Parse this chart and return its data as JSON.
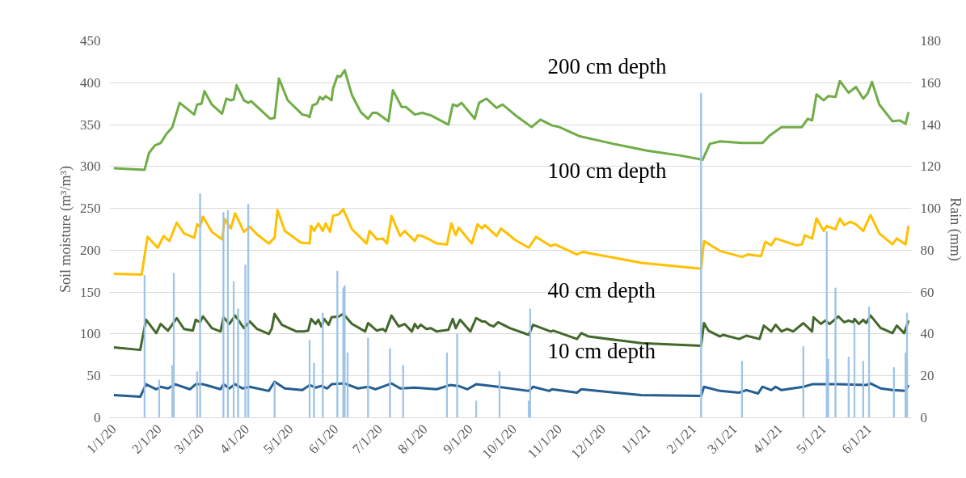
{
  "chart_data": {
    "type": "line",
    "ylabel": "Soil moisture (m³/m³)",
    "y2label": "Rain (mm)",
    "xlim": [
      "2019-12-29",
      "2021-06-30"
    ],
    "xticks": [
      {
        "value": "2020-01-01",
        "label": "1/1/20"
      },
      {
        "value": "2020-02-01",
        "label": "2/1/20"
      },
      {
        "value": "2020-03-01",
        "label": "3/1/20"
      },
      {
        "value": "2020-04-01",
        "label": "4/1/20"
      },
      {
        "value": "2020-05-01",
        "label": "5/1/20"
      },
      {
        "value": "2020-06-01",
        "label": "6/1/20"
      },
      {
        "value": "2020-07-01",
        "label": "7/1/20"
      },
      {
        "value": "2020-08-01",
        "label": "8/1/20"
      },
      {
        "value": "2020-09-01",
        "label": "9/1/20"
      },
      {
        "value": "2020-10-01",
        "label": "10/1/20"
      },
      {
        "value": "2020-11-01",
        "label": "11/1/20"
      },
      {
        "value": "2020-12-01",
        "label": "12/1/20"
      },
      {
        "value": "2021-01-01",
        "label": "1/1/21"
      },
      {
        "value": "2021-02-01",
        "label": "2/1/21"
      },
      {
        "value": "2021-03-01",
        "label": "3/1/21"
      },
      {
        "value": "2021-04-01",
        "label": "4/1/21"
      },
      {
        "value": "2021-05-01",
        "label": "5/1/21"
      },
      {
        "value": "2021-06-01",
        "label": "6/1/21"
      }
    ],
    "ylim": [
      0,
      450
    ],
    "yticks": [
      0,
      50,
      100,
      150,
      200,
      250,
      300,
      350,
      400,
      450
    ],
    "y2lim": [
      0,
      180
    ],
    "y2ticks": [
      0,
      20,
      40,
      60,
      80,
      100,
      120,
      140,
      160,
      180
    ],
    "grid": "y",
    "marker": "none",
    "line_style": "solid",
    "annotations": [
      "200 cm depth",
      "100 cm depth",
      "40 cm depth",
      "10 cm depth"
    ],
    "series": [
      {
        "color": "#70ad47",
        "x": [
          "2020-01-01",
          "2020-01-22",
          "2020-01-25",
          "2020-01-29",
          "2020-02-02",
          "2020-02-06",
          "2020-02-10",
          "2020-02-15",
          "2020-02-25",
          "2020-02-27",
          "2020-03-01",
          "2020-03-03",
          "2020-03-08",
          "2020-03-15",
          "2020-03-18",
          "2020-03-21",
          "2020-03-23",
          "2020-03-25",
          "2020-03-30",
          "2020-04-02",
          "2020-04-04",
          "2020-04-17",
          "2020-04-20",
          "2020-04-23",
          "2020-04-29",
          "2020-05-09",
          "2020-05-12",
          "2020-05-14",
          "2020-05-16",
          "2020-05-19",
          "2020-05-21",
          "2020-05-23",
          "2020-05-25",
          "2020-05-29",
          "2020-05-30",
          "2020-06-02",
          "2020-06-04",
          "2020-06-07",
          "2020-06-12",
          "2020-06-18",
          "2020-06-23",
          "2020-06-26",
          "2020-06-29",
          "2020-07-07",
          "2020-07-10",
          "2020-07-16",
          "2020-07-19",
          "2020-07-25",
          "2020-07-30",
          "2020-08-05",
          "2020-08-17",
          "2020-08-20",
          "2020-08-23",
          "2020-08-26",
          "2020-09-04",
          "2020-09-07",
          "2020-09-12",
          "2020-09-19",
          "2020-09-23",
          "2020-10-02",
          "2020-10-13",
          "2020-10-19",
          "2020-10-27",
          "2020-11-01",
          "2020-11-15",
          "2020-12-08",
          "2020-12-31",
          "2021-01-23",
          "2021-02-07",
          "2021-02-12",
          "2021-02-19",
          "2021-03-06",
          "2021-03-20",
          "2021-03-25",
          "2021-04-02",
          "2021-04-16",
          "2021-04-20",
          "2021-04-23",
          "2021-04-26",
          "2021-05-01",
          "2021-05-04",
          "2021-05-09",
          "2021-05-12",
          "2021-05-18",
          "2021-05-23",
          "2021-05-28",
          "2021-05-31",
          "2021-06-03",
          "2021-06-08",
          "2021-06-17",
          "2021-06-22",
          "2021-06-26",
          "2021-06-28"
        ],
        "values": [
          298,
          296,
          316,
          325,
          328,
          339,
          347,
          376,
          362,
          374,
          375,
          390,
          374,
          363,
          381,
          379,
          380,
          397,
          379,
          376,
          378,
          357,
          358,
          405,
          379,
          362,
          361,
          359,
          373,
          375,
          383,
          380,
          384,
          379,
          393,
          408,
          407,
          415,
          385,
          365,
          357,
          364,
          364,
          354,
          391,
          371,
          371,
          362,
          364,
          361,
          350,
          374,
          372,
          376,
          357,
          376,
          381,
          370,
          374,
          361,
          347,
          356,
          349,
          347,
          336,
          327,
          319,
          313,
          308,
          327,
          330,
          328,
          328,
          337,
          347,
          347,
          357,
          355,
          386,
          379,
          384,
          383,
          402,
          388,
          395,
          381,
          387,
          401,
          374,
          354,
          355,
          351,
          365
        ]
      },
      {
        "color": "#ffc000",
        "x": [
          "2020-01-01",
          "2020-01-20",
          "2020-01-24",
          "2020-01-31",
          "2020-02-04",
          "2020-02-08",
          "2020-02-13",
          "2020-02-18",
          "2020-02-25",
          "2020-02-27",
          "2020-02-29",
          "2020-03-02",
          "2020-03-08",
          "2020-03-15",
          "2020-03-17",
          "2020-03-21",
          "2020-03-24",
          "2020-03-30",
          "2020-04-03",
          "2020-04-08",
          "2020-04-16",
          "2020-04-20",
          "2020-04-22",
          "2020-04-27",
          "2020-05-08",
          "2020-05-14",
          "2020-05-15",
          "2020-05-17",
          "2020-05-20",
          "2020-05-23",
          "2020-05-25",
          "2020-05-28",
          "2020-05-30",
          "2020-06-03",
          "2020-06-06",
          "2020-06-12",
          "2020-06-22",
          "2020-06-24",
          "2020-06-29",
          "2020-07-03",
          "2020-07-06",
          "2020-07-09",
          "2020-07-15",
          "2020-07-18",
          "2020-07-25",
          "2020-07-27",
          "2020-07-30",
          "2020-08-05",
          "2020-08-09",
          "2020-08-16",
          "2020-08-19",
          "2020-08-22",
          "2020-08-24",
          "2020-09-02",
          "2020-09-06",
          "2020-09-09",
          "2020-09-11",
          "2020-09-19",
          "2020-09-22",
          "2020-10-02",
          "2020-10-11",
          "2020-10-16",
          "2020-10-26",
          "2020-10-29",
          "2020-11-13",
          "2020-11-17",
          "2020-12-27",
          "2021-02-06",
          "2021-02-08",
          "2021-02-19",
          "2021-03-06",
          "2021-03-10",
          "2021-03-19",
          "2021-03-22",
          "2021-03-26",
          "2021-03-29",
          "2021-04-12",
          "2021-04-16",
          "2021-04-18",
          "2021-04-23",
          "2021-04-26",
          "2021-05-01",
          "2021-05-03",
          "2021-05-09",
          "2021-05-12",
          "2021-05-15",
          "2021-05-19",
          "2021-05-23",
          "2021-05-28",
          "2021-05-30",
          "2021-06-02",
          "2021-06-08",
          "2021-06-17",
          "2021-06-20",
          "2021-06-26",
          "2021-06-28"
        ],
        "values": [
          172,
          171,
          216,
          203,
          217,
          211,
          233,
          220,
          215,
          231,
          228,
          240,
          222,
          213,
          237,
          226,
          244,
          222,
          228,
          219,
          208,
          215,
          248,
          223,
          209,
          208,
          229,
          223,
          232,
          223,
          232,
          222,
          241,
          243,
          249,
          225,
          208,
          223,
          213,
          214,
          208,
          241,
          217,
          223,
          211,
          218,
          217,
          212,
          208,
          207,
          232,
          218,
          227,
          208,
          231,
          226,
          230,
          217,
          226,
          212,
          203,
          216,
          205,
          207,
          195,
          198,
          185,
          178,
          211,
          199,
          192,
          195,
          193,
          210,
          206,
          214,
          206,
          207,
          218,
          214,
          238,
          223,
          229,
          225,
          238,
          230,
          234,
          231,
          223,
          231,
          242,
          220,
          207,
          214,
          207,
          229
        ]
      },
      {
        "color": "#43682b",
        "x": [
          "2020-01-01",
          "2020-01-19",
          "2020-01-23",
          "2020-01-30",
          "2020-02-02",
          "2020-02-07",
          "2020-02-13",
          "2020-02-18",
          "2020-02-24",
          "2020-02-26",
          "2020-02-29",
          "2020-03-02",
          "2020-03-08",
          "2020-03-14",
          "2020-03-16",
          "2020-03-20",
          "2020-03-24",
          "2020-03-30",
          "2020-04-03",
          "2020-04-08",
          "2020-04-16",
          "2020-04-18",
          "2020-04-20",
          "2020-04-25",
          "2020-05-05",
          "2020-05-10",
          "2020-05-13",
          "2020-05-15",
          "2020-05-18",
          "2020-05-20",
          "2020-05-22",
          "2020-05-24",
          "2020-05-27",
          "2020-05-29",
          "2020-06-03",
          "2020-06-06",
          "2020-06-12",
          "2020-06-21",
          "2020-06-23",
          "2020-06-29",
          "2020-07-03",
          "2020-07-05",
          "2020-07-09",
          "2020-07-14",
          "2020-07-18",
          "2020-07-23",
          "2020-07-25",
          "2020-07-27",
          "2020-07-29",
          "2020-08-02",
          "2020-08-05",
          "2020-08-09",
          "2020-08-17",
          "2020-08-20",
          "2020-08-22",
          "2020-08-25",
          "2020-09-01",
          "2020-09-05",
          "2020-09-09",
          "2020-09-11",
          "2020-09-14",
          "2020-09-17",
          "2020-09-20",
          "2020-09-28",
          "2020-10-11",
          "2020-10-14",
          "2020-10-26",
          "2020-10-28",
          "2020-11-13",
          "2020-11-16",
          "2020-11-21",
          "2020-12-27",
          "2021-02-06",
          "2021-02-08",
          "2021-02-11",
          "2021-02-19",
          "2021-02-21",
          "2021-03-04",
          "2021-03-09",
          "2021-03-18",
          "2021-03-21",
          "2021-03-26",
          "2021-03-29",
          "2021-04-02",
          "2021-04-06",
          "2021-04-10",
          "2021-04-17",
          "2021-04-23",
          "2021-04-24",
          "2021-04-29",
          "2021-05-02",
          "2021-05-05",
          "2021-05-11",
          "2021-05-15",
          "2021-05-18",
          "2021-05-21",
          "2021-05-22",
          "2021-05-25",
          "2021-05-28",
          "2021-05-30",
          "2021-06-02",
          "2021-06-09",
          "2021-06-12",
          "2021-06-17",
          "2021-06-20",
          "2021-06-25",
          "2021-06-28"
        ],
        "values": [
          84,
          81,
          117,
          101,
          112,
          104,
          119,
          106,
          104,
          117,
          114,
          121,
          107,
          103,
          120,
          112,
          122,
          107,
          115,
          106,
          100,
          106,
          124,
          111,
          103,
          103,
          104,
          118,
          112,
          117,
          109,
          118,
          111,
          120,
          121,
          124,
          112,
          103,
          113,
          104,
          106,
          103,
          122,
          109,
          112,
          103,
          112,
          107,
          111,
          106,
          107,
          103,
          105,
          118,
          107,
          117,
          103,
          119,
          115,
          115,
          111,
          109,
          114,
          107,
          99,
          111,
          103,
          104,
          94,
          101,
          97,
          89,
          86,
          113,
          104,
          97,
          99,
          94,
          98,
          94,
          110,
          103,
          111,
          103,
          106,
          103,
          113,
          103,
          120,
          112,
          116,
          112,
          121,
          114,
          116,
          114,
          118,
          112,
          117,
          113,
          122,
          107,
          105,
          101,
          110,
          101,
          116
        ]
      },
      {
        "color": "#255e91",
        "x": [
          "2020-01-01",
          "2020-01-19",
          "2020-01-23",
          "2020-01-30",
          "2020-02-02",
          "2020-02-07",
          "2020-02-12",
          "2020-02-22",
          "2020-02-26",
          "2020-03-02",
          "2020-03-14",
          "2020-03-16",
          "2020-03-20",
          "2020-03-24",
          "2020-03-29",
          "2020-04-03",
          "2020-04-16",
          "2020-04-20",
          "2020-04-27",
          "2020-05-09",
          "2020-05-14",
          "2020-05-18",
          "2020-05-22",
          "2020-05-26",
          "2020-05-29",
          "2020-06-07",
          "2020-06-16",
          "2020-06-23",
          "2020-06-28",
          "2020-07-09",
          "2020-07-15",
          "2020-07-25",
          "2020-08-09",
          "2020-08-18",
          "2020-08-24",
          "2020-08-30",
          "2020-09-05",
          "2020-09-20",
          "2020-10-11",
          "2020-10-14",
          "2020-10-25",
          "2020-10-27",
          "2020-11-13",
          "2020-11-16",
          "2020-12-27",
          "2021-02-06",
          "2021-02-08",
          "2021-02-19",
          "2021-03-04",
          "2021-03-09",
          "2021-03-17",
          "2021-03-20",
          "2021-03-26",
          "2021-03-29",
          "2021-04-02",
          "2021-04-17",
          "2021-04-23",
          "2021-05-11",
          "2021-05-30",
          "2021-06-02",
          "2021-06-09",
          "2021-06-17",
          "2021-06-26",
          "2021-06-28"
        ],
        "values": [
          27,
          25,
          40,
          34,
          37,
          35,
          40,
          34,
          40,
          40,
          34,
          40,
          35,
          40,
          35,
          37,
          32,
          43,
          35,
          33,
          39,
          36,
          38,
          35,
          40,
          41,
          35,
          37,
          34,
          41,
          35,
          36,
          34,
          39,
          38,
          34,
          40,
          37,
          32,
          37,
          32,
          34,
          30,
          34,
          27,
          26,
          37,
          32,
          30,
          33,
          29,
          37,
          33,
          37,
          33,
          37,
          40,
          40,
          39,
          41,
          35,
          33,
          32,
          39
        ]
      },
      {
        "type": "bar",
        "axis": "y2",
        "color": "#9dc3e6",
        "x": [
          "2020-01-22",
          "2020-02-01",
          "2020-02-10",
          "2020-02-11",
          "2020-02-27",
          "2020-02-29",
          "2020-03-16",
          "2020-03-19",
          "2020-03-23",
          "2020-03-26",
          "2020-03-31",
          "2020-04-02",
          "2020-04-20",
          "2020-05-14",
          "2020-05-17",
          "2020-05-23",
          "2020-06-02",
          "2020-06-06",
          "2020-06-07",
          "2020-06-09",
          "2020-06-23",
          "2020-07-08",
          "2020-07-17",
          "2020-08-16",
          "2020-08-23",
          "2020-09-05",
          "2020-09-21",
          "2020-10-11",
          "2020-10-12",
          "2021-02-06",
          "2021-03-06",
          "2021-04-17",
          "2021-05-03",
          "2021-05-04",
          "2021-05-09",
          "2021-05-18",
          "2021-05-22",
          "2021-05-28",
          "2021-06-01",
          "2021-06-18",
          "2021-06-26",
          "2021-06-27"
        ],
        "values": [
          68,
          18,
          25,
          69,
          22,
          107,
          98,
          99,
          65,
          52,
          73,
          102,
          17,
          37,
          26,
          50,
          70,
          62,
          63,
          31,
          38,
          33,
          25,
          31,
          40,
          8,
          22,
          8,
          52,
          155,
          27,
          34,
          89,
          28,
          62,
          29,
          45,
          27,
          53,
          24,
          31,
          50
        ]
      }
    ]
  }
}
